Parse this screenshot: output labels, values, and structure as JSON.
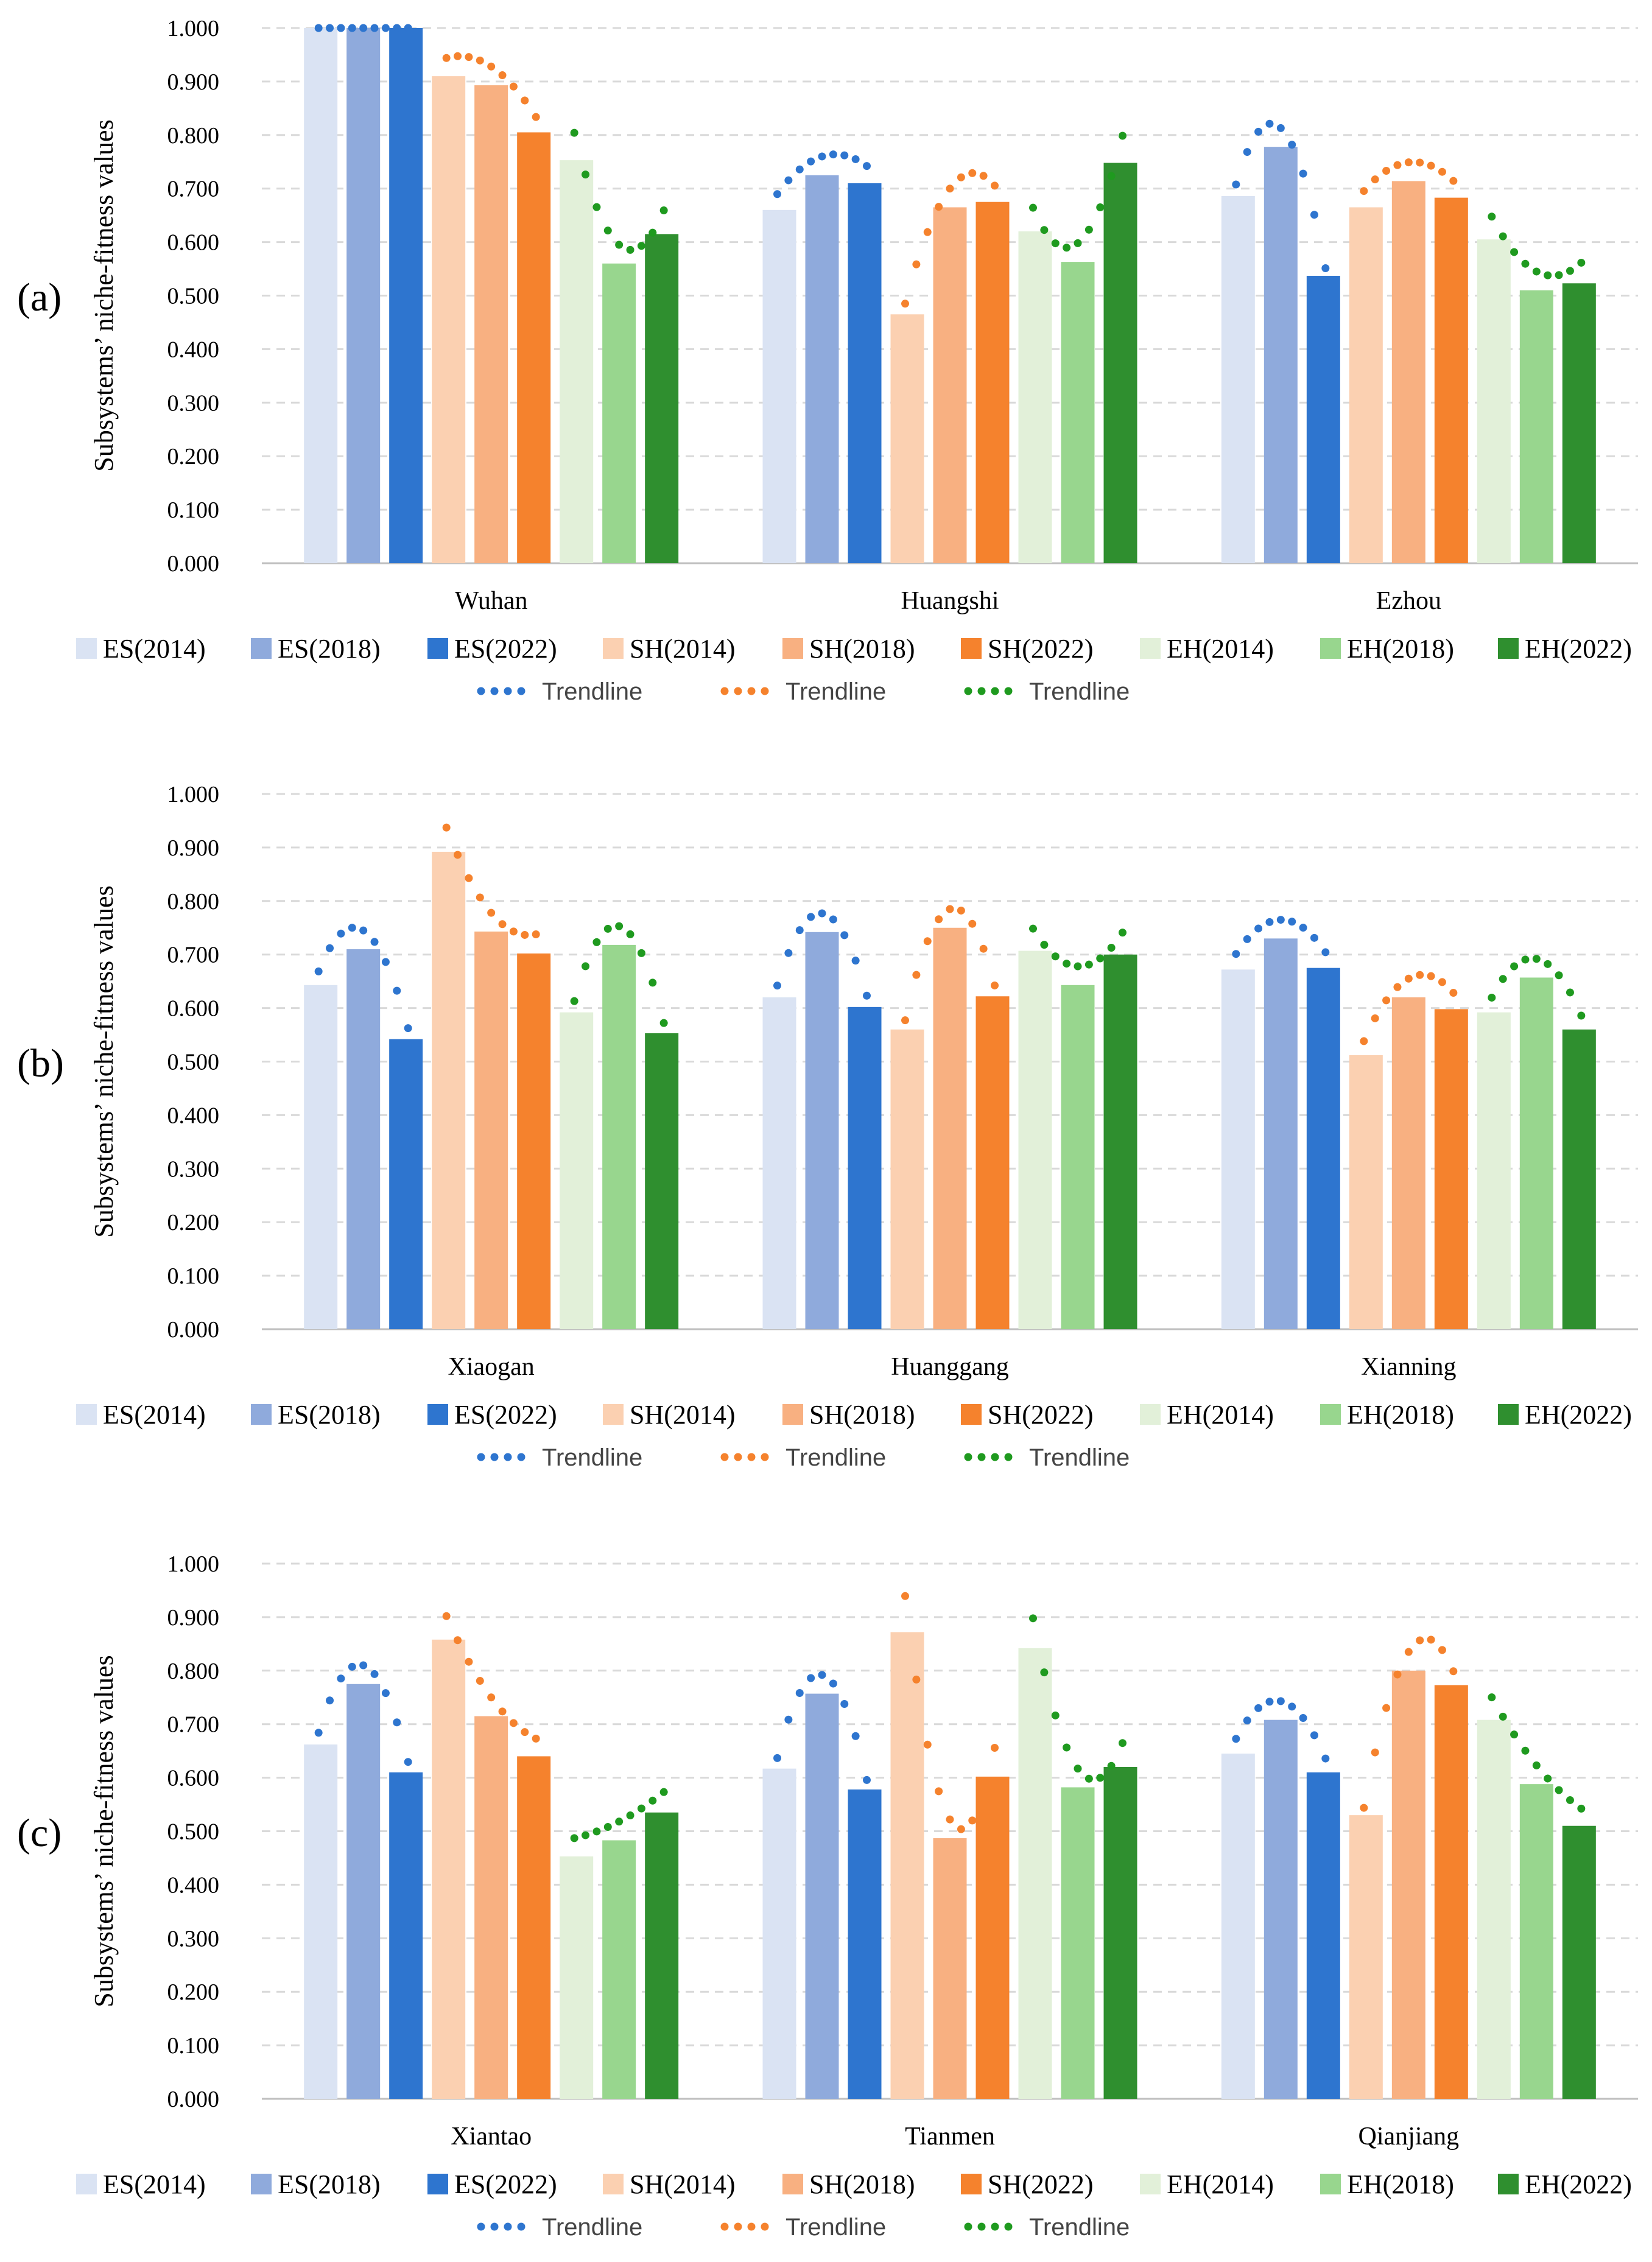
{
  "chart_data": [
    {
      "type": "bar",
      "panel_label": "(a)",
      "ylabel": "Subsystems’ niche-fitness values",
      "ylim": [
        0,
        1
      ],
      "yticks": [
        "0.000",
        "0.100",
        "0.200",
        "0.300",
        "0.400",
        "0.500",
        "0.600",
        "0.700",
        "0.800",
        "0.900",
        "1.000"
      ],
      "grid": true,
      "categories": [
        "Wuhan",
        "Huangshi",
        "Ezhou"
      ],
      "series": [
        {
          "name": "ES(2014)",
          "color": "#dae3f3",
          "values": [
            1.0,
            0.66,
            0.686
          ]
        },
        {
          "name": "ES(2018)",
          "color": "#8faadc",
          "values": [
            1.0,
            0.725,
            0.778
          ]
        },
        {
          "name": "ES(2022)",
          "color": "#2e75cf",
          "values": [
            1.0,
            0.71,
            0.537
          ]
        },
        {
          "name": "SH(2014)",
          "color": "#fbd0b1",
          "values": [
            0.91,
            0.465,
            0.665
          ]
        },
        {
          "name": "SH(2018)",
          "color": "#f8b081",
          "values": [
            0.893,
            0.665,
            0.714
          ]
        },
        {
          "name": "SH(2022)",
          "color": "#f5822d",
          "values": [
            0.805,
            0.675,
            0.683
          ]
        },
        {
          "name": "EH(2014)",
          "color": "#e2f0d9",
          "values": [
            0.753,
            0.62,
            0.605
          ]
        },
        {
          "name": "EH(2018)",
          "color": "#98d68e",
          "values": [
            0.56,
            0.563,
            0.51
          ]
        },
        {
          "name": "EH(2022)",
          "color": "#2f8f2f",
          "values": [
            0.615,
            0.748,
            0.523
          ]
        }
      ],
      "trendlines": [
        {
          "name": "Trendline",
          "color": "#2e75cf"
        },
        {
          "name": "Trendline",
          "color": "#f5822d"
        },
        {
          "name": "Trendline",
          "color": "#1f9a1f"
        }
      ]
    },
    {
      "type": "bar",
      "panel_label": "(b)",
      "ylabel": "Subsystems’ niche-fitness values",
      "ylim": [
        0,
        1
      ],
      "yticks": [
        "0.000",
        "0.100",
        "0.200",
        "0.300",
        "0.400",
        "0.500",
        "0.600",
        "0.700",
        "0.800",
        "0.900",
        "1.000"
      ],
      "grid": true,
      "categories": [
        "Xiaogan",
        "Huanggang",
        "Xianning"
      ],
      "series": [
        {
          "name": "ES(2014)",
          "color": "#dae3f3",
          "values": [
            0.643,
            0.62,
            0.672
          ]
        },
        {
          "name": "ES(2018)",
          "color": "#8faadc",
          "values": [
            0.71,
            0.742,
            0.73
          ]
        },
        {
          "name": "ES(2022)",
          "color": "#2e75cf",
          "values": [
            0.542,
            0.602,
            0.675
          ]
        },
        {
          "name": "SH(2014)",
          "color": "#fbd0b1",
          "values": [
            0.892,
            0.56,
            0.512
          ]
        },
        {
          "name": "SH(2018)",
          "color": "#f8b081",
          "values": [
            0.743,
            0.75,
            0.62
          ]
        },
        {
          "name": "SH(2022)",
          "color": "#f5822d",
          "values": [
            0.702,
            0.622,
            0.598
          ]
        },
        {
          "name": "EH(2014)",
          "color": "#e2f0d9",
          "values": [
            0.592,
            0.707,
            0.592
          ]
        },
        {
          "name": "EH(2018)",
          "color": "#98d68e",
          "values": [
            0.718,
            0.643,
            0.657
          ]
        },
        {
          "name": "EH(2022)",
          "color": "#2f8f2f",
          "values": [
            0.553,
            0.7,
            0.56
          ]
        }
      ],
      "trendlines": [
        {
          "name": "Trendline",
          "color": "#2e75cf"
        },
        {
          "name": "Trendline",
          "color": "#f5822d"
        },
        {
          "name": "Trendline",
          "color": "#1f9a1f"
        }
      ]
    },
    {
      "type": "bar",
      "panel_label": "(c)",
      "ylabel": "Subsystems’ niche-fitness values",
      "ylim": [
        0,
        1
      ],
      "yticks": [
        "0.000",
        "0.100",
        "0.200",
        "0.300",
        "0.400",
        "0.500",
        "0.600",
        "0.700",
        "0.800",
        "0.900",
        "1.000"
      ],
      "grid": true,
      "categories": [
        "Xiantao",
        "Tianmen",
        "Qianjiang"
      ],
      "series": [
        {
          "name": "ES(2014)",
          "color": "#dae3f3",
          "values": [
            0.662,
            0.617,
            0.645
          ]
        },
        {
          "name": "ES(2018)",
          "color": "#8faadc",
          "values": [
            0.775,
            0.757,
            0.708
          ]
        },
        {
          "name": "ES(2022)",
          "color": "#2e75cf",
          "values": [
            0.61,
            0.578,
            0.61
          ]
        },
        {
          "name": "SH(2014)",
          "color": "#fbd0b1",
          "values": [
            0.858,
            0.872,
            0.53
          ]
        },
        {
          "name": "SH(2018)",
          "color": "#f8b081",
          "values": [
            0.715,
            0.487,
            0.8
          ]
        },
        {
          "name": "SH(2022)",
          "color": "#f5822d",
          "values": [
            0.64,
            0.602,
            0.773
          ]
        },
        {
          "name": "EH(2014)",
          "color": "#e2f0d9",
          "values": [
            0.453,
            0.842,
            0.708
          ]
        },
        {
          "name": "EH(2018)",
          "color": "#98d68e",
          "values": [
            0.483,
            0.582,
            0.588
          ]
        },
        {
          "name": "EH(2022)",
          "color": "#2f8f2f",
          "values": [
            0.535,
            0.62,
            0.51
          ]
        }
      ],
      "trendlines": [
        {
          "name": "Trendline",
          "color": "#2e75cf"
        },
        {
          "name": "Trendline",
          "color": "#f5822d"
        },
        {
          "name": "Trendline",
          "color": "#1f9a1f"
        }
      ]
    }
  ]
}
